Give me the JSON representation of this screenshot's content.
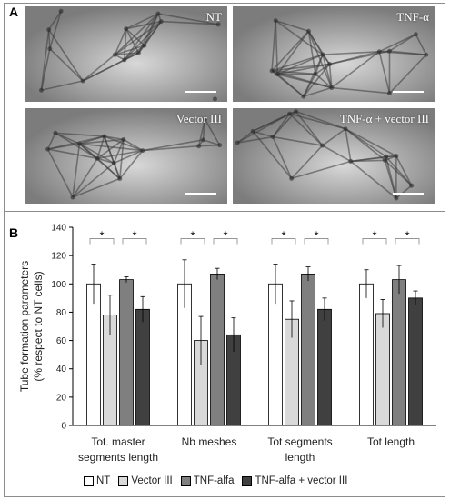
{
  "panels": {
    "a_letter": "A",
    "b_letter": "B",
    "images": [
      {
        "label": "NT"
      },
      {
        "label": "TNF-α"
      },
      {
        "label": "Vector III"
      },
      {
        "label": "TNF-α + vector III"
      }
    ]
  },
  "chart_data": {
    "type": "bar",
    "ylabel_line1": "Tube formation parameters",
    "ylabel_line2": "(% respect to NT cells)",
    "ylim": [
      0,
      140
    ],
    "yticks": [
      0,
      20,
      40,
      60,
      80,
      100,
      120,
      140
    ],
    "grid": false,
    "legend_placement": "bottom",
    "categories": [
      {
        "line1": "Tot. master",
        "line2": "segments length"
      },
      {
        "line1": "Nb meshes",
        "line2": ""
      },
      {
        "line1": "Tot segments",
        "line2": "length"
      },
      {
        "line1": "Tot length",
        "line2": ""
      }
    ],
    "series": [
      {
        "name": "NT",
        "color": "#ffffff",
        "values": [
          100,
          100,
          100,
          100
        ],
        "errors": [
          14,
          17,
          14,
          10
        ]
      },
      {
        "name": "Vector III",
        "color": "#d9d9d9",
        "values": [
          78,
          60,
          75,
          79
        ],
        "errors": [
          14,
          17,
          13,
          10
        ]
      },
      {
        "name": "TNF-alfa",
        "color": "#7f7f7f",
        "values": [
          103,
          107,
          107,
          103
        ],
        "errors": [
          2,
          4,
          5,
          10
        ]
      },
      {
        "name": "TNF-alfa + vector III",
        "color": "#404040",
        "values": [
          82,
          64,
          82,
          90
        ],
        "errors": [
          9,
          12,
          8,
          5
        ]
      }
    ],
    "significance_marker": "*"
  }
}
